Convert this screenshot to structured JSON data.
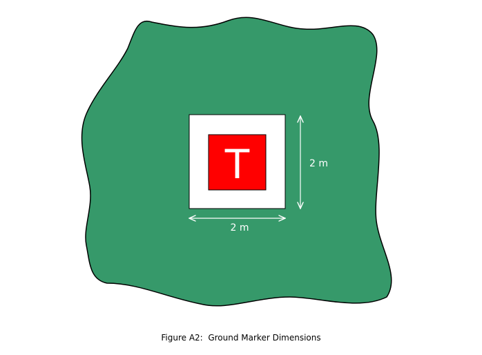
{
  "marker": {
    "letter": "T",
    "width_label": "2 m",
    "height_label": "2 m"
  },
  "caption": "Figure A2:  Ground Marker Dimensions",
  "colors": {
    "ground": "#36996a",
    "ground_outline": "#000000",
    "marker_background": "#ffffff",
    "marker_inner": "#ff0000",
    "letter": "#ffffff",
    "dimension_lines": "#ffffff"
  }
}
